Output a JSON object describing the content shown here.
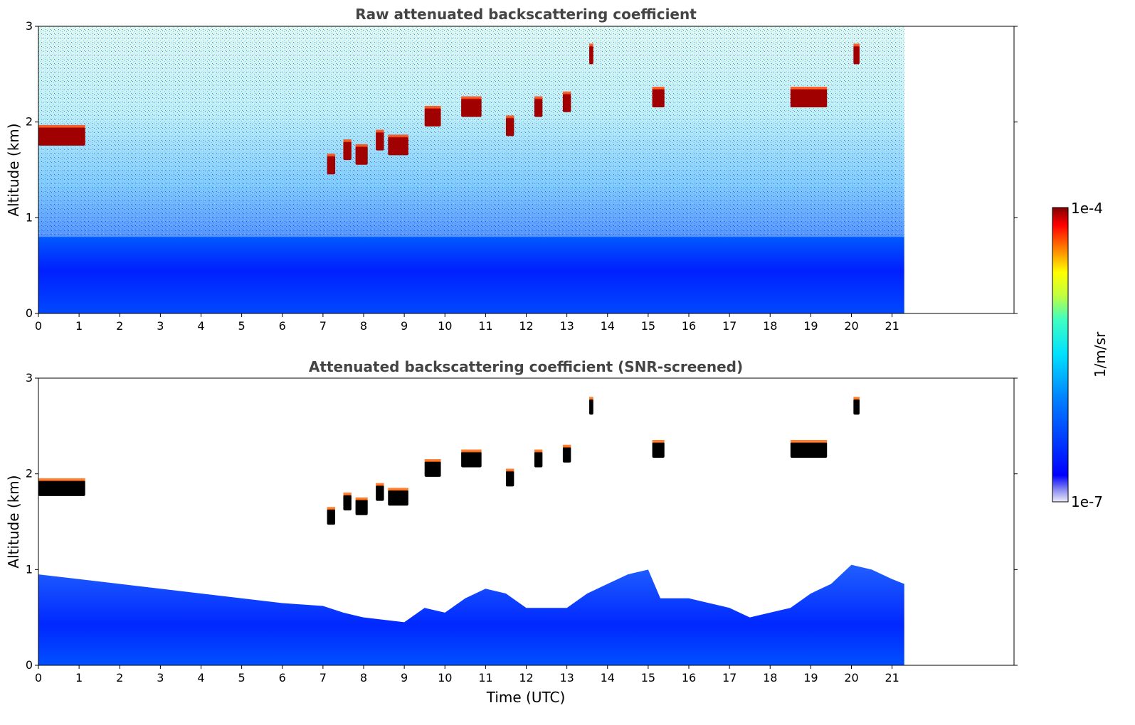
{
  "chart_data": [
    {
      "type": "heatmap",
      "title": "Raw attenuated backscattering coefficient",
      "xlabel": "",
      "ylabel": "Altitude (km)",
      "xlim": [
        0,
        24
      ],
      "ylim": [
        0,
        3
      ],
      "xticks": [
        "0",
        "1",
        "2",
        "3",
        "4",
        "5",
        "6",
        "7",
        "8",
        "9",
        "10",
        "11",
        "12",
        "13",
        "14",
        "15",
        "16",
        "17",
        "18",
        "19",
        "20",
        "21"
      ],
      "yticks": [
        "0",
        "1",
        "2",
        "3"
      ],
      "data_end_hour": 21.3,
      "background_layer": {
        "top_km_approx": 0.9,
        "noise_up_to_km": 3.0
      },
      "cloud_features": [
        {
          "t_start": 0.0,
          "t_end": 1.15,
          "alt_km": 1.85
        },
        {
          "t_start": 7.1,
          "t_end": 7.3,
          "alt_km": 1.55
        },
        {
          "t_start": 7.5,
          "t_end": 7.7,
          "alt_km": 1.7
        },
        {
          "t_start": 7.8,
          "t_end": 8.1,
          "alt_km": 1.65
        },
        {
          "t_start": 8.3,
          "t_end": 8.5,
          "alt_km": 1.8
        },
        {
          "t_start": 8.6,
          "t_end": 9.1,
          "alt_km": 1.75
        },
        {
          "t_start": 9.5,
          "t_end": 9.9,
          "alt_km": 2.05
        },
        {
          "t_start": 10.4,
          "t_end": 10.9,
          "alt_km": 2.15
        },
        {
          "t_start": 11.5,
          "t_end": 11.7,
          "alt_km": 1.95
        },
        {
          "t_start": 12.2,
          "t_end": 12.4,
          "alt_km": 2.15
        },
        {
          "t_start": 12.9,
          "t_end": 13.1,
          "alt_km": 2.2
        },
        {
          "t_start": 13.55,
          "t_end": 13.65,
          "alt_km": 2.7
        },
        {
          "t_start": 15.1,
          "t_end": 15.4,
          "alt_km": 2.25
        },
        {
          "t_start": 18.5,
          "t_end": 19.4,
          "alt_km": 2.25
        },
        {
          "t_start": 20.05,
          "t_end": 20.2,
          "alt_km": 2.7
        }
      ]
    },
    {
      "type": "heatmap",
      "title": "Attenuated backscattering coefficient (SNR-screened)",
      "xlabel": "Time (UTC)",
      "ylabel": "Altitude (km)",
      "xlim": [
        0,
        24
      ],
      "ylim": [
        0,
        3
      ],
      "xticks": [
        "0",
        "1",
        "2",
        "3",
        "4",
        "5",
        "6",
        "7",
        "8",
        "9",
        "10",
        "11",
        "12",
        "13",
        "14",
        "15",
        "16",
        "17",
        "18",
        "19",
        "20",
        "21"
      ],
      "yticks": [
        "0",
        "1",
        "2",
        "3"
      ],
      "data_end_hour": 21.3,
      "boundary_layer_top_km": [
        [
          0,
          0.95
        ],
        [
          1,
          0.9
        ],
        [
          2,
          0.85
        ],
        [
          3,
          0.8
        ],
        [
          4,
          0.75
        ],
        [
          5,
          0.7
        ],
        [
          6,
          0.65
        ],
        [
          7,
          0.62
        ],
        [
          7.5,
          0.55
        ],
        [
          8,
          0.5
        ],
        [
          9,
          0.45
        ],
        [
          9.5,
          0.6
        ],
        [
          10,
          0.55
        ],
        [
          10.5,
          0.7
        ],
        [
          11,
          0.8
        ],
        [
          11.5,
          0.75
        ],
        [
          12,
          0.6
        ],
        [
          12.5,
          0.6
        ],
        [
          13,
          0.6
        ],
        [
          13.5,
          0.75
        ],
        [
          14,
          0.85
        ],
        [
          14.5,
          0.95
        ],
        [
          15,
          1.0
        ],
        [
          15.3,
          0.7
        ],
        [
          16,
          0.7
        ],
        [
          16.5,
          0.65
        ],
        [
          17,
          0.6
        ],
        [
          17.5,
          0.5
        ],
        [
          18,
          0.55
        ],
        [
          18.5,
          0.6
        ],
        [
          19,
          0.75
        ],
        [
          19.5,
          0.85
        ],
        [
          20,
          1.05
        ],
        [
          20.5,
          1.0
        ],
        [
          21,
          0.9
        ],
        [
          21.3,
          0.85
        ]
      ],
      "cloud_features": [
        {
          "t_start": 0.0,
          "t_end": 1.15,
          "alt_km": 1.85
        },
        {
          "t_start": 7.1,
          "t_end": 7.3,
          "alt_km": 1.55
        },
        {
          "t_start": 7.5,
          "t_end": 7.7,
          "alt_km": 1.7
        },
        {
          "t_start": 7.8,
          "t_end": 8.1,
          "alt_km": 1.65
        },
        {
          "t_start": 8.3,
          "t_end": 8.5,
          "alt_km": 1.8
        },
        {
          "t_start": 8.6,
          "t_end": 9.1,
          "alt_km": 1.75
        },
        {
          "t_start": 9.5,
          "t_end": 9.9,
          "alt_km": 2.05
        },
        {
          "t_start": 10.4,
          "t_end": 10.9,
          "alt_km": 2.15
        },
        {
          "t_start": 11.5,
          "t_end": 11.7,
          "alt_km": 1.95
        },
        {
          "t_start": 12.2,
          "t_end": 12.4,
          "alt_km": 2.15
        },
        {
          "t_start": 12.9,
          "t_end": 13.1,
          "alt_km": 2.2
        },
        {
          "t_start": 13.55,
          "t_end": 13.65,
          "alt_km": 2.7
        },
        {
          "t_start": 15.1,
          "t_end": 15.4,
          "alt_km": 2.25
        },
        {
          "t_start": 18.5,
          "t_end": 19.4,
          "alt_km": 2.25
        },
        {
          "t_start": 20.05,
          "t_end": 20.2,
          "alt_km": 2.7
        }
      ]
    }
  ],
  "colorbar": {
    "label": "1/m/sr",
    "min_label": "1e-7",
    "max_label": "1e-4",
    "scale": "log",
    "colormap": "jet"
  }
}
